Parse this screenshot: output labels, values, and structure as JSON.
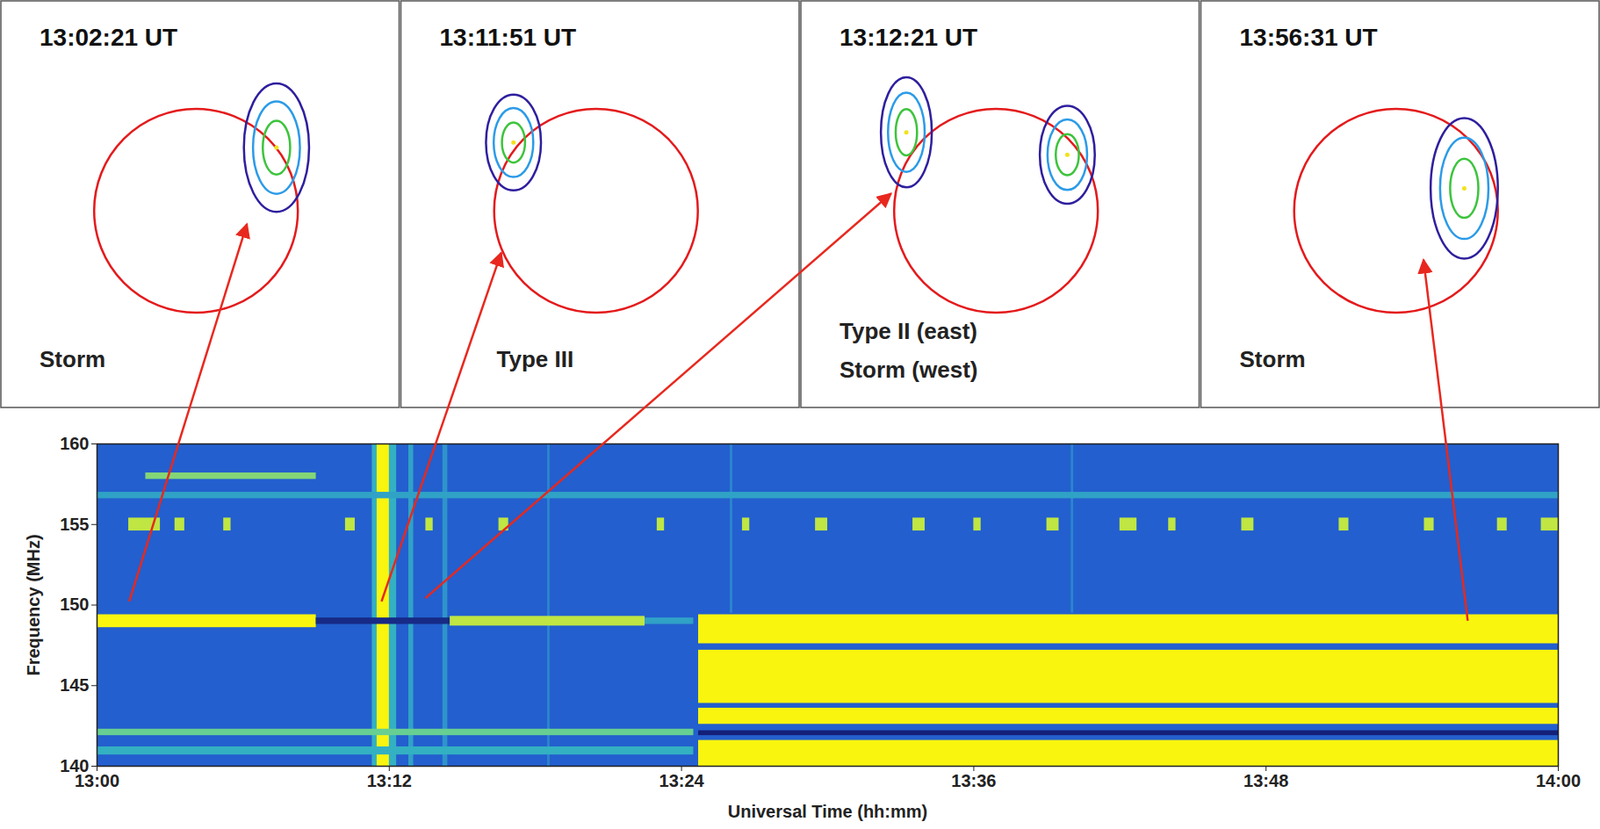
{
  "panels": [
    {
      "time": "13:02:21 UT",
      "labels": [
        "Storm"
      ],
      "disk_radius": 1,
      "sources": [
        {
          "x": 0.79,
          "y": 0.62,
          "rx": 0.32,
          "ry": 0.63
        }
      ],
      "arrow_from": {
        "t": 1.34,
        "f": 150.2
      },
      "arrow_to": {
        "x": 0.5,
        "y": -0.13
      }
    },
    {
      "time": "13:11:51 UT",
      "labels": [
        "Type III"
      ],
      "disk_radius": 1,
      "sources": [
        {
          "x": -0.81,
          "y": 0.67,
          "rx": 0.27,
          "ry": 0.47
        }
      ],
      "arrow_from": {
        "t": 11.7,
        "f": 150.2
      },
      "arrow_to": {
        "x": -0.93,
        "y": -0.41
      }
    },
    {
      "time": "13:12:21 UT",
      "labels": [
        "Type II (east)",
        "Storm (west)"
      ],
      "disk_radius": 1,
      "sources": [
        {
          "x": -0.88,
          "y": 0.77,
          "rx": 0.25,
          "ry": 0.54
        },
        {
          "x": 0.7,
          "y": 0.55,
          "rx": 0.27,
          "ry": 0.48
        }
      ],
      "arrow_from": {
        "t": 13.5,
        "f": 150.4
      },
      "arrow_to": {
        "x": -1.03,
        "y": 0.17
      }
    },
    {
      "time": "13:56:31 UT",
      "labels": [
        "Storm"
      ],
      "disk_radius": 1,
      "sources": [
        {
          "x": 0.67,
          "y": 0.22,
          "rx": 0.33,
          "ry": 0.69
        }
      ],
      "arrow_from": {
        "t": 56.3,
        "f": 149.0
      },
      "arrow_to": {
        "x": 0.27,
        "y": -0.48
      }
    }
  ],
  "chart_data": {
    "type": "heatmap",
    "xlabel": "Universal Time (hh:mm)",
    "ylabel": "Frequency (MHz)",
    "xlim": [
      0,
      60
    ],
    "xticks": [
      {
        "value": 0,
        "label": "13:00"
      },
      {
        "value": 12,
        "label": "13:12"
      },
      {
        "value": 24,
        "label": "13:24"
      },
      {
        "value": 36,
        "label": "13:36"
      },
      {
        "value": 48,
        "label": "13:48"
      },
      {
        "value": 60,
        "label": "14:00"
      }
    ],
    "ylim": [
      140,
      160
    ],
    "yticks": [
      140,
      145,
      150,
      155,
      160
    ],
    "zlim": [
      0,
      1
    ],
    "cells": [
      {
        "t0": 0,
        "t1": 60,
        "f0": 140,
        "f1": 160,
        "level": 0.3
      },
      {
        "t0": 12.8,
        "t1": 13.0,
        "f0": 140,
        "f1": 160,
        "level": 0.55
      },
      {
        "t0": 14.2,
        "t1": 14.4,
        "f0": 140,
        "f1": 160,
        "level": 0.5
      },
      {
        "t0": 18.5,
        "t1": 18.6,
        "f0": 140,
        "f1": 160,
        "level": 0.45
      },
      {
        "t0": 26.0,
        "t1": 26.1,
        "f0": 149.5,
        "f1": 160,
        "level": 0.45
      },
      {
        "t0": 40.0,
        "t1": 40.1,
        "f0": 149.5,
        "f1": 160,
        "level": 0.45
      },
      {
        "t0": 11.3,
        "t1": 12.3,
        "f0": 140,
        "f1": 160,
        "level": 0.6
      },
      {
        "t0": 11.5,
        "t1": 12.0,
        "f0": 140,
        "f1": 160,
        "level": 1.0
      },
      {
        "t0": 0,
        "t1": 9,
        "f0": 148.6,
        "f1": 149.4,
        "level": 1.0
      },
      {
        "t0": 9,
        "t1": 14.5,
        "f0": 148.8,
        "f1": 149.2,
        "level": 0.05
      },
      {
        "t0": 14.5,
        "t1": 22.5,
        "f0": 148.7,
        "f1": 149.3,
        "level": 0.9
      },
      {
        "t0": 22.5,
        "t1": 24.5,
        "f0": 148.8,
        "f1": 149.2,
        "level": 0.55
      },
      {
        "t0": 0,
        "t1": 24.5,
        "f0": 141.9,
        "f1": 142.3,
        "level": 0.75
      },
      {
        "t0": 0,
        "t1": 24.5,
        "f0": 140.7,
        "f1": 141.2,
        "level": 0.6
      },
      {
        "t0": 24.7,
        "t1": 60,
        "f0": 147.6,
        "f1": 149.4,
        "level": 1.0
      },
      {
        "t0": 24.7,
        "t1": 60,
        "f0": 143.9,
        "f1": 147.2,
        "level": 1.0
      },
      {
        "t0": 24.7,
        "t1": 60,
        "f0": 142.6,
        "f1": 143.6,
        "level": 1.0
      },
      {
        "t0": 24.7,
        "t1": 60,
        "f0": 141.9,
        "f1": 142.2,
        "level": 0.0
      },
      {
        "t0": 24.7,
        "t1": 60,
        "f0": 140,
        "f1": 141.6,
        "level": 1.0
      },
      {
        "t0": 0,
        "t1": 60,
        "f0": 156.6,
        "f1": 157.0,
        "level": 0.55
      },
      {
        "t0": 2,
        "t1": 9,
        "f0": 157.8,
        "f1": 158.2,
        "level": 0.8
      },
      {
        "t0": 1.3,
        "t1": 2.6,
        "f0": 154.6,
        "f1": 155.4,
        "level": 0.9
      },
      {
        "t0": 3.2,
        "t1": 3.6,
        "f0": 154.6,
        "f1": 155.4,
        "level": 0.9
      },
      {
        "t0": 5.2,
        "t1": 5.5,
        "f0": 154.6,
        "f1": 155.4,
        "level": 0.9
      },
      {
        "t0": 10.2,
        "t1": 10.6,
        "f0": 154.6,
        "f1": 155.4,
        "level": 0.9
      },
      {
        "t0": 13.5,
        "t1": 13.8,
        "f0": 154.6,
        "f1": 155.4,
        "level": 0.9
      },
      {
        "t0": 16.5,
        "t1": 16.9,
        "f0": 154.6,
        "f1": 155.4,
        "level": 0.9
      },
      {
        "t0": 23,
        "t1": 23.3,
        "f0": 154.6,
        "f1": 155.4,
        "level": 0.9
      },
      {
        "t0": 26.5,
        "t1": 26.8,
        "f0": 154.6,
        "f1": 155.4,
        "level": 0.9
      },
      {
        "t0": 29.5,
        "t1": 30,
        "f0": 154.6,
        "f1": 155.4,
        "level": 0.9
      },
      {
        "t0": 33.5,
        "t1": 34,
        "f0": 154.6,
        "f1": 155.4,
        "level": 0.9
      },
      {
        "t0": 36,
        "t1": 36.3,
        "f0": 154.6,
        "f1": 155.4,
        "level": 0.9
      },
      {
        "t0": 39,
        "t1": 39.5,
        "f0": 154.6,
        "f1": 155.4,
        "level": 0.9
      },
      {
        "t0": 42,
        "t1": 42.7,
        "f0": 154.6,
        "f1": 155.4,
        "level": 0.9
      },
      {
        "t0": 44,
        "t1": 44.3,
        "f0": 154.6,
        "f1": 155.4,
        "level": 0.9
      },
      {
        "t0": 47,
        "t1": 47.5,
        "f0": 154.6,
        "f1": 155.4,
        "level": 0.9
      },
      {
        "t0": 51,
        "t1": 51.4,
        "f0": 154.6,
        "f1": 155.4,
        "level": 0.9
      },
      {
        "t0": 54.5,
        "t1": 54.9,
        "f0": 154.6,
        "f1": 155.4,
        "level": 0.9
      },
      {
        "t0": 57.5,
        "t1": 57.9,
        "f0": 154.6,
        "f1": 155.4,
        "level": 0.9
      },
      {
        "t0": 59.3,
        "t1": 60,
        "f0": 154.6,
        "f1": 155.4,
        "level": 0.9
      }
    ]
  }
}
